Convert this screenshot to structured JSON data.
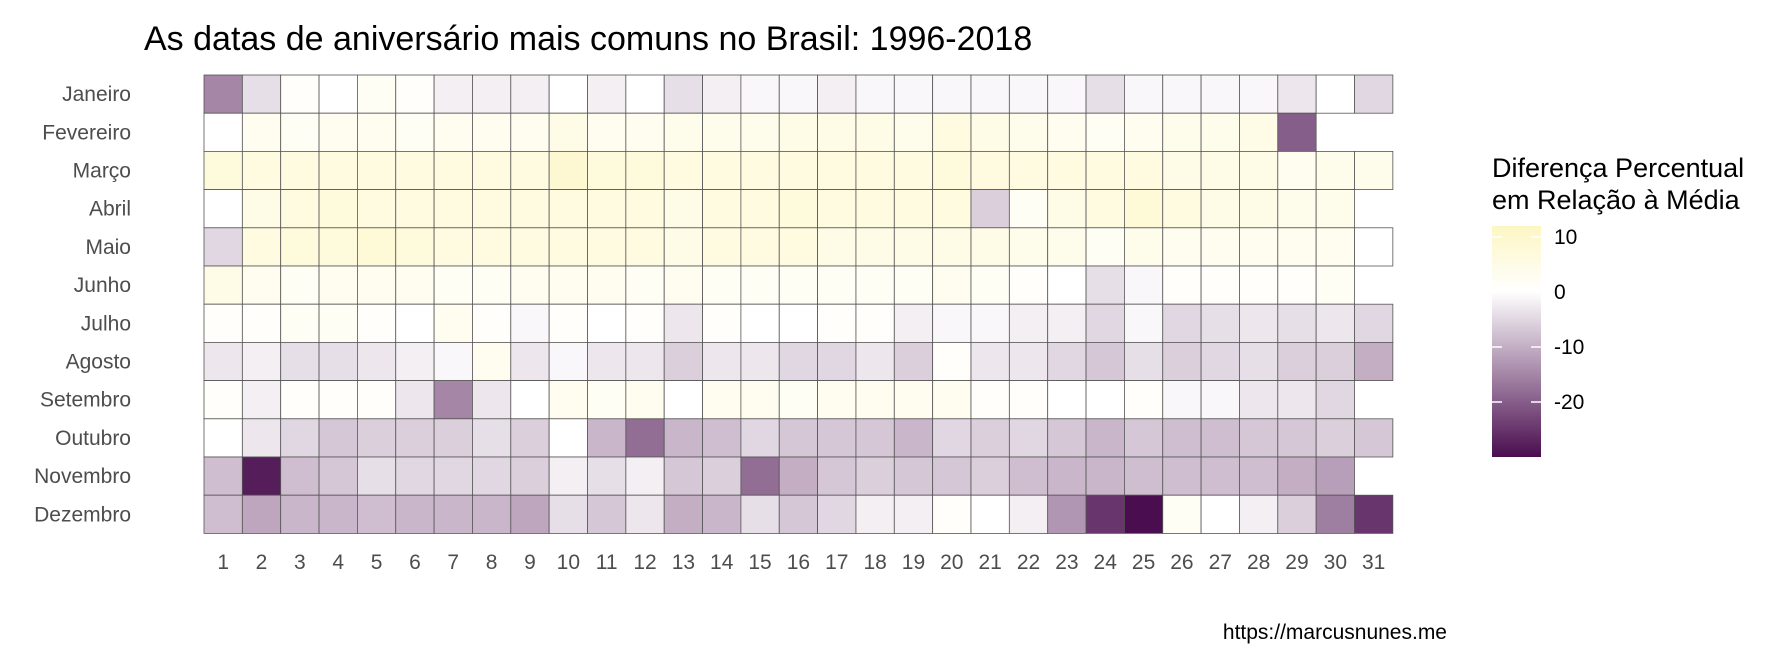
{
  "chart_data": {
    "type": "heatmap",
    "title": "As datas de aniversário mais comuns no Brasil: 1996-2018",
    "caption": "https://marcusnunes.me",
    "y_categories": [
      "Janeiro",
      "Fevereiro",
      "Março",
      "Abril",
      "Maio",
      "Junho",
      "Julho",
      "Agosto",
      "Setembro",
      "Outubro",
      "Novembro",
      "Dezembro"
    ],
    "x_categories": [
      "1",
      "2",
      "3",
      "4",
      "5",
      "6",
      "7",
      "8",
      "9",
      "10",
      "11",
      "12",
      "13",
      "14",
      "15",
      "16",
      "17",
      "18",
      "19",
      "20",
      "21",
      "22",
      "23",
      "24",
      "25",
      "26",
      "27",
      "28",
      "29",
      "30",
      "31"
    ],
    "values": [
      [
        -15,
        -4,
        1,
        0,
        2,
        1,
        -2,
        -2,
        -2,
        0,
        -2,
        0,
        -4,
        -2,
        -1,
        -1,
        -2,
        -1,
        -1,
        -1,
        -1,
        -1,
        -1,
        -4,
        -1,
        -1,
        -1,
        -1,
        -3,
        0,
        -5
      ],
      [
        0,
        3,
        2,
        3,
        3,
        2,
        3,
        3,
        3,
        5,
        3,
        3,
        4,
        4,
        4,
        5,
        5,
        5,
        4,
        6,
        5,
        4,
        3,
        2,
        3,
        4,
        4,
        5,
        -20,
        null,
        null
      ],
      [
        7,
        6,
        6,
        6,
        6,
        6,
        6,
        6,
        6,
        9,
        7,
        7,
        6,
        6,
        6,
        6,
        6,
        6,
        6,
        7,
        6,
        6,
        6,
        6,
        6,
        5,
        5,
        5,
        3,
        4,
        4
      ],
      [
        0,
        5,
        6,
        7,
        6,
        6,
        6,
        6,
        6,
        6,
        6,
        6,
        5,
        6,
        6,
        7,
        6,
        6,
        6,
        6,
        -6,
        2,
        5,
        6,
        8,
        6,
        5,
        5,
        4,
        4,
        null
      ],
      [
        -5,
        6,
        7,
        7,
        8,
        7,
        6,
        6,
        6,
        6,
        6,
        6,
        5,
        6,
        6,
        6,
        5,
        5,
        5,
        5,
        5,
        4,
        4,
        2,
        4,
        3,
        3,
        3,
        3,
        3,
        0
      ],
      [
        5,
        3,
        2,
        3,
        3,
        3,
        2,
        2,
        3,
        3,
        3,
        2,
        3,
        2,
        2,
        2,
        2,
        2,
        2,
        3,
        2,
        1,
        0,
        -4,
        -1,
        1,
        1,
        1,
        1,
        2,
        null
      ],
      [
        1,
        1,
        2,
        2,
        1,
        0,
        3,
        1,
        -1,
        1,
        0,
        1,
        -3,
        1,
        0,
        0,
        1,
        1,
        -2,
        -1,
        -1,
        -2,
        -2,
        -5,
        -1,
        -5,
        -4,
        -3,
        -4,
        -3,
        -5
      ],
      [
        -3,
        -2,
        -4,
        -4,
        -3,
        -2,
        -1,
        3,
        -3,
        -1,
        -3,
        -3,
        -6,
        -3,
        -3,
        -5,
        -5,
        -3,
        -6,
        1,
        -3,
        -3,
        -5,
        -7,
        -4,
        -6,
        -5,
        -4,
        -6,
        -6,
        -10
      ],
      [
        1,
        -2,
        1,
        1,
        1,
        -3,
        -15,
        -3,
        0,
        3,
        2,
        3,
        0,
        3,
        3,
        2,
        3,
        3,
        3,
        3,
        1,
        1,
        0,
        0,
        1,
        -1,
        -1,
        -3,
        -3,
        -5,
        null
      ],
      [
        0,
        -3,
        -5,
        -7,
        -6,
        -6,
        -6,
        -4,
        -6,
        0,
        -9,
        -18,
        -9,
        -8,
        -5,
        -7,
        -7,
        -7,
        -9,
        -5,
        -6,
        -5,
        -7,
        -9,
        -7,
        -8,
        -8,
        -7,
        -7,
        -6,
        -7
      ],
      [
        -8,
        -28,
        -8,
        -7,
        -4,
        -5,
        -5,
        -5,
        -6,
        -2,
        -4,
        -2,
        -7,
        -6,
        -18,
        -10,
        -7,
        -6,
        -7,
        -7,
        -6,
        -8,
        -9,
        -9,
        -8,
        -8,
        -8,
        -8,
        -10,
        -12,
        null
      ],
      [
        -8,
        -11,
        -9,
        -9,
        -8,
        -9,
        -9,
        -9,
        -11,
        -4,
        -7,
        -3,
        -10,
        -9,
        -4,
        -7,
        -5,
        -2,
        -2,
        1,
        0,
        -2,
        -13,
        -25,
        -30,
        2,
        0,
        -2,
        -6,
        -16,
        -25
      ]
    ],
    "legend": {
      "title_lines": [
        "Diferença Percentual",
        "em Relação à Média"
      ],
      "ticks": [
        10,
        0,
        -10,
        -20
      ],
      "tick_labels": [
        "10",
        "0",
        "-10",
        "-20"
      ],
      "range": [
        -30,
        12
      ],
      "placement": "right"
    },
    "colors": {
      "high": "#fdf6c3",
      "mid": "#ffffff",
      "low": "#4a0d4f",
      "grid_line": "#555555"
    }
  }
}
